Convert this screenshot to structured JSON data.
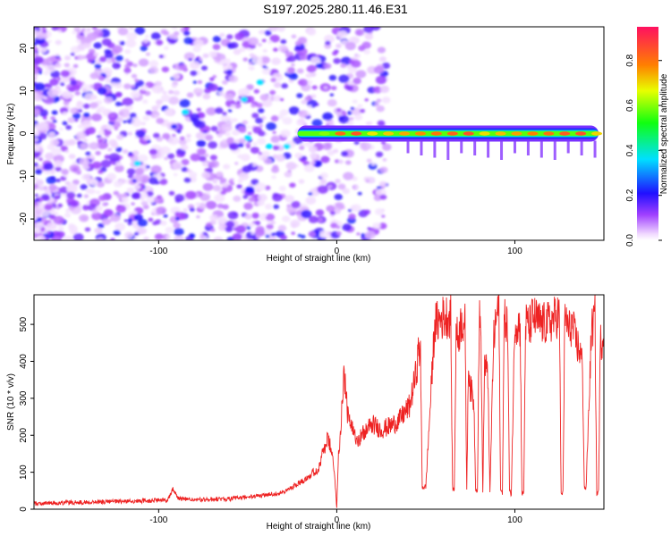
{
  "title": "S197.2025.280.11.46.E31",
  "chart_data": [
    {
      "type": "heatmap",
      "xlabel": "Height of straight line (km)",
      "ylabel": "Frequency (Hz)",
      "xlim": [
        -170,
        150
      ],
      "ylim": [
        -25,
        25
      ],
      "xticks": [
        -100,
        0,
        100
      ],
      "yticks": [
        -20,
        -10,
        0,
        10,
        20
      ],
      "ridge": {
        "frequency": 0,
        "x_start": -22,
        "x_end": 147,
        "peak_amplitude": 0.9
      },
      "colorbar": {
        "label": "Normalized spectral amplitude",
        "range": [
          0,
          0.95
        ],
        "ticks": [
          0.0,
          0.2,
          0.4,
          0.6,
          0.8
        ],
        "tick_labels": [
          "0.0",
          "0.2",
          "0.4",
          "0.6",
          "0.8"
        ]
      }
    },
    {
      "type": "line",
      "xlabel": "Height of straight line (km)",
      "ylabel": "SNR (10 * v/v)",
      "xlim": [
        -170,
        150
      ],
      "ylim": [
        0,
        580
      ],
      "xticks": [
        -100,
        0,
        100
      ],
      "yticks": [
        0,
        100,
        200,
        300,
        400,
        500
      ],
      "series": [
        {
          "name": "SNR",
          "color": "#ee2222",
          "x": [
            -170,
            -150,
            -130,
            -110,
            -95,
            -92,
            -89,
            -80,
            -60,
            -45,
            -30,
            -25,
            -20,
            -10,
            -8,
            -5,
            -3,
            -1,
            0,
            1,
            2,
            4,
            6,
            8,
            12,
            16,
            20,
            25,
            30,
            35,
            38,
            41,
            43,
            45,
            46,
            47,
            48,
            50,
            55,
            60,
            64,
            65,
            66,
            67,
            68,
            70,
            72,
            73,
            74,
            75,
            77,
            78,
            79,
            80,
            81,
            82,
            83,
            84,
            85,
            86,
            88,
            90,
            91,
            92,
            93,
            94,
            95,
            96,
            97,
            98,
            100,
            102,
            103,
            104,
            105,
            106,
            107,
            108,
            110,
            115,
            120,
            125,
            126,
            127,
            128,
            129,
            130,
            132,
            134,
            137,
            138,
            139,
            140,
            143,
            145,
            146,
            147,
            148,
            150
          ],
          "y": [
            15,
            18,
            20,
            22,
            25,
            55,
            30,
            25,
            28,
            35,
            45,
            60,
            75,
            110,
            150,
            190,
            160,
            80,
            5,
            150,
            200,
            380,
            260,
            220,
            190,
            210,
            230,
            215,
            225,
            240,
            260,
            280,
            330,
            380,
            440,
            410,
            60,
            60,
            500,
            520,
            525,
            60,
            50,
            480,
            460,
            510,
            500,
            55,
            400,
            330,
            290,
            55,
            50,
            520,
            470,
            40,
            400,
            380,
            340,
            40,
            450,
            530,
            560,
            50,
            45,
            500,
            520,
            480,
            50,
            40,
            510,
            500,
            490,
            40,
            45,
            500,
            505,
            490,
            520,
            500,
            505,
            530,
            40,
            45,
            500,
            520,
            480,
            500,
            460,
            420,
            380,
            60,
            55,
            480,
            520,
            40,
            50,
            450,
            470
          ]
        }
      ]
    }
  ]
}
